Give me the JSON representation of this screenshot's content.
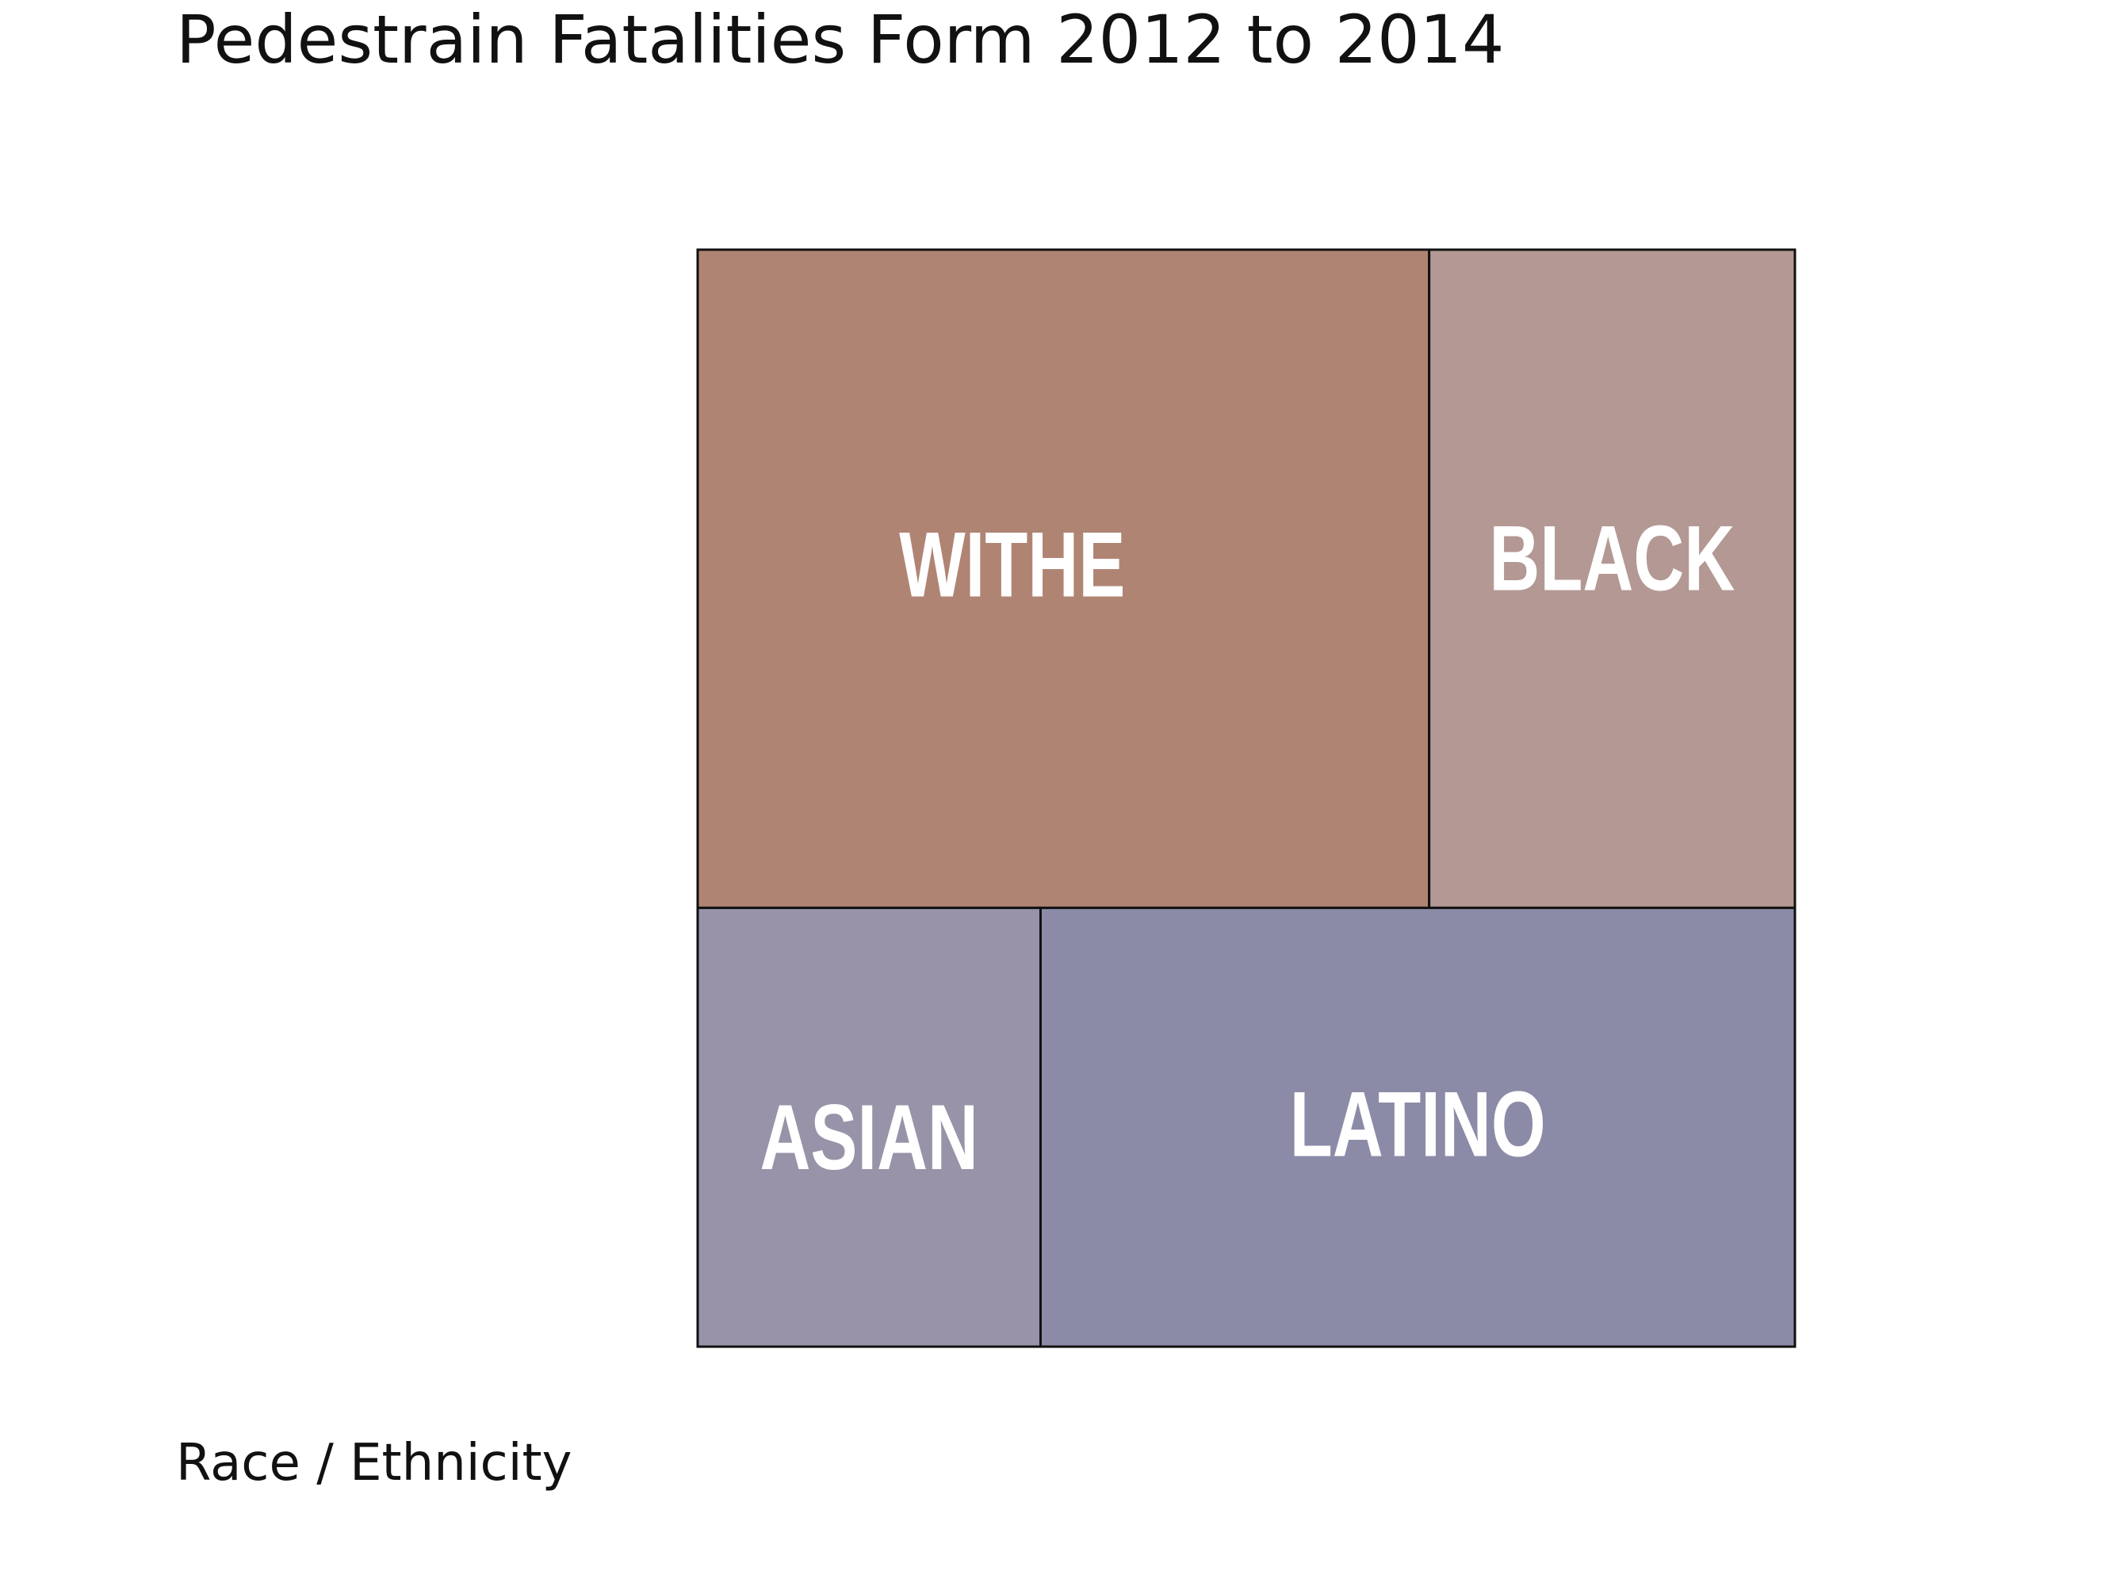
{
  "chart_data": {
    "type": "treemap",
    "title": "Pedestrain Fatalities Form 2012 to 2014",
    "subtitle": "",
    "footer_label": "Race / Ethnicity",
    "categories": [
      "WITHE",
      "BLACK",
      "ASIAN",
      "LATINO"
    ],
    "values": [
      40,
      20,
      12.5,
      27.5
    ],
    "colors": [
      "#b08473",
      "#b39894",
      "#9893a8",
      "#8b8ba8"
    ],
    "border_color": "#111111"
  }
}
